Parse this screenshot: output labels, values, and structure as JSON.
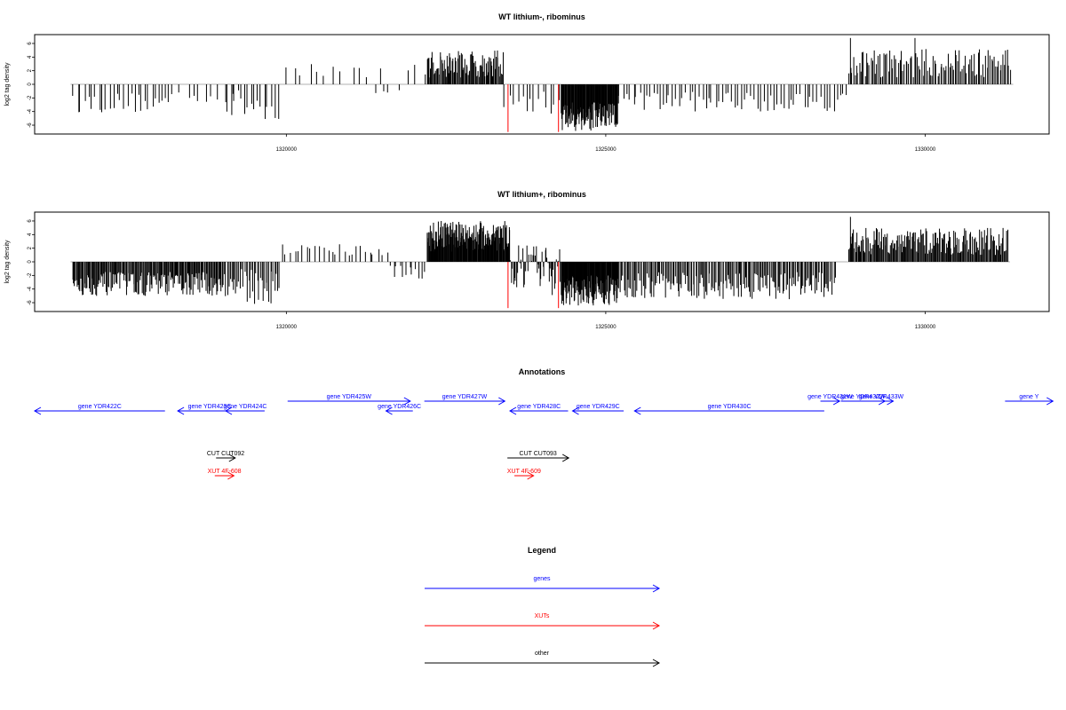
{
  "chart_data": {
    "type": "bar",
    "panels": [
      {
        "title": "WT lithium-, ribominus",
        "ylabel": "log2 tag density",
        "ylim": [
          -7.3,
          7.3
        ],
        "yticks": [
          -6,
          -4,
          -2,
          0,
          2,
          4,
          6
        ],
        "xlim": [
          1316060,
          1331940
        ],
        "xticks": [
          1320000,
          1325000,
          1330000
        ],
        "xtick_labels": [
          "1320000",
          "1325000",
          "1330000"
        ],
        "segments": [
          {
            "start": 1316650,
            "end": 1318200,
            "count": 28,
            "min": -4.2,
            "max": -1.2
          },
          {
            "start": 1318200,
            "end": 1319200,
            "count": 10,
            "min": -2.8,
            "max": -0.4
          },
          {
            "start": 1319050,
            "end": 1319900,
            "count": 16,
            "min": -5.3,
            "max": -0.8
          },
          {
            "start": 1319900,
            "end": 1321500,
            "count": 12,
            "min": 1.0,
            "max": 3.0
          },
          {
            "start": 1321300,
            "end": 1321800,
            "count": 4,
            "min": -1.5,
            "max": -0.5
          },
          {
            "start": 1321800,
            "end": 1322200,
            "count": 3,
            "min": 1.0,
            "max": 3.0
          },
          {
            "start": 1322200,
            "end": 1323400,
            "count": 90,
            "min": 1.0,
            "max": 5.0
          },
          {
            "start": 1323400,
            "end": 1324300,
            "count": 14,
            "min": -4.5,
            "max": -1.0
          },
          {
            "start": 1324300,
            "end": 1325200,
            "count": 110,
            "min": -7.0,
            "max": -2.5
          },
          {
            "start": 1325200,
            "end": 1328800,
            "count": 70,
            "min": -4.0,
            "max": -1.0
          },
          {
            "start": 1328800,
            "end": 1331300,
            "count": 110,
            "min": 1.0,
            "max": 5.2
          },
          {
            "start": 1331300,
            "end": 1331350,
            "count": 2,
            "min": 2.0,
            "max": 3.0
          }
        ],
        "spikes": [
          {
            "x": 1329840,
            "y": 6.8
          },
          {
            "x": 1328830,
            "y": 6.8
          }
        ],
        "red_marks": [
          {
            "x": 1323470,
            "y": -7.0
          },
          {
            "x": 1324260,
            "y": -7.0
          }
        ]
      },
      {
        "title": "WT lithium+, ribominus",
        "ylabel": "log2 tag density",
        "ylim": [
          -7.3,
          7.3
        ],
        "yticks": [
          -6,
          -4,
          -2,
          0,
          2,
          4,
          6
        ],
        "xlim": [
          1316060,
          1331940
        ],
        "xticks": [
          1320000,
          1325000,
          1330000
        ],
        "xtick_labels": [
          "1320000",
          "1325000",
          "1330000"
        ],
        "segments": [
          {
            "start": 1316650,
            "end": 1319000,
            "count": 170,
            "min": -5.0,
            "max": -1.5
          },
          {
            "start": 1319000,
            "end": 1319900,
            "count": 40,
            "min": -6.2,
            "max": -1.0
          },
          {
            "start": 1319900,
            "end": 1321600,
            "count": 26,
            "min": 0.8,
            "max": 2.8
          },
          {
            "start": 1321600,
            "end": 1322200,
            "count": 12,
            "min": -2.5,
            "max": -0.5
          },
          {
            "start": 1322200,
            "end": 1323500,
            "count": 160,
            "min": 1.5,
            "max": 6.0
          },
          {
            "start": 1323500,
            "end": 1324300,
            "count": 50,
            "min": -5.0,
            "max": 2.5
          },
          {
            "start": 1324300,
            "end": 1325200,
            "count": 120,
            "min": -6.5,
            "max": -2.0
          },
          {
            "start": 1325200,
            "end": 1328600,
            "count": 170,
            "min": -5.5,
            "max": -1.5
          },
          {
            "start": 1328800,
            "end": 1331300,
            "count": 180,
            "min": 1.0,
            "max": 5.0
          }
        ],
        "spikes": [
          {
            "x": 1328830,
            "y": 6.6
          }
        ],
        "red_marks": [
          {
            "x": 1323470,
            "y": -6.8
          },
          {
            "x": 1324260,
            "y": -6.8
          }
        ]
      }
    ],
    "annotations": {
      "title": "Annotations",
      "features": [
        {
          "label": "gene YDR422C",
          "start": 1316060,
          "end": 1318100,
          "strand": "-",
          "row": 0,
          "color": "#0000ff"
        },
        {
          "label": "gene YDR423C",
          "start": 1318300,
          "end": 1319300,
          "strand": "-",
          "row": 0,
          "color": "#0000ff"
        },
        {
          "label": "gene YDR424C",
          "start": 1319050,
          "end": 1319660,
          "strand": "-",
          "row": 0,
          "color": "#0000ff"
        },
        {
          "label": "gene YDR425W",
          "start": 1320020,
          "end": 1321940,
          "strand": "+",
          "row": 1,
          "color": "#0000ff"
        },
        {
          "label": "gene YDR426C",
          "start": 1321560,
          "end": 1321980,
          "strand": "-",
          "row": 0,
          "color": "#0000ff"
        },
        {
          "label": "gene YDR427W",
          "start": 1322160,
          "end": 1323420,
          "strand": "+",
          "row": 1,
          "color": "#0000ff"
        },
        {
          "label": "gene YDR428C",
          "start": 1323500,
          "end": 1324410,
          "strand": "-",
          "row": 0,
          "color": "#0000ff"
        },
        {
          "label": "gene YDR429C",
          "start": 1324480,
          "end": 1325280,
          "strand": "-",
          "row": 0,
          "color": "#0000ff"
        },
        {
          "label": "gene YDR430C",
          "start": 1325450,
          "end": 1328420,
          "strand": "-",
          "row": 0,
          "color": "#0000ff"
        },
        {
          "label": "gene YDR431W",
          "start": 1328360,
          "end": 1328660,
          "strand": "+",
          "row": 1,
          "color": "#0000ff"
        },
        {
          "label": "gene YDR432W",
          "start": 1328680,
          "end": 1329370,
          "strand": "+",
          "row": 1,
          "color": "#0000ff"
        },
        {
          "label": "gene YDR433W",
          "start": 1329120,
          "end": 1329500,
          "strand": "+",
          "row": 1,
          "color": "#0000ff"
        },
        {
          "label": "gene Y",
          "start": 1331250,
          "end": 1332000,
          "strand": "+",
          "row": 1,
          "color": "#0000ff"
        },
        {
          "label": "CUT CUT092",
          "start": 1318900,
          "end": 1319200,
          "strand": "+",
          "row": 2,
          "color": "#000000"
        },
        {
          "label": "CUT CUT093",
          "start": 1323460,
          "end": 1324420,
          "strand": "+",
          "row": 2,
          "color": "#000000"
        },
        {
          "label": "XUT 4F-608",
          "start": 1318880,
          "end": 1319180,
          "strand": "+",
          "row": 3,
          "color": "#ff0000"
        },
        {
          "label": "XUT 4F-609",
          "start": 1323570,
          "end": 1323870,
          "strand": "+",
          "row": 3,
          "color": "#ff0000"
        }
      ]
    },
    "legend": {
      "title": "Legend",
      "items": [
        {
          "label": "genes",
          "color": "#0000ff"
        },
        {
          "label": "XUTs",
          "color": "#ff0000"
        },
        {
          "label": "other",
          "color": "#000000"
        }
      ]
    }
  }
}
